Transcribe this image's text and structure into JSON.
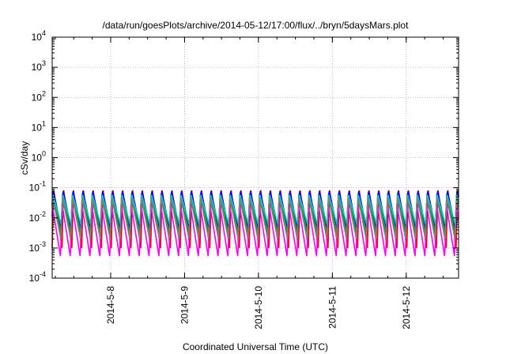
{
  "chart_data": {
    "type": "line",
    "title": "/data/run/goesPlots/archive/2014-05-12/17:00/flux/../bryn/5daysMars.plot",
    "xlabel": "Coordinated Universal Time (UTC)",
    "ylabel": "cSv/day",
    "yscale": "log",
    "ylim": [
      0.0001,
      10000
    ],
    "xlim": [
      "2014-05-07 05:00",
      "2014-05-12 17:00"
    ],
    "y_ticks": [
      {
        "base": "10",
        "exp": "-4"
      },
      {
        "base": "10",
        "exp": "-3"
      },
      {
        "base": "10",
        "exp": "-2"
      },
      {
        "base": "10",
        "exp": "-1"
      },
      {
        "base": "10",
        "exp": "0"
      },
      {
        "base": "10",
        "exp": "1"
      },
      {
        "base": "10",
        "exp": "2"
      },
      {
        "base": "10",
        "exp": "3"
      },
      {
        "base": "10",
        "exp": "4"
      }
    ],
    "x_ticks": [
      "2014-5-8",
      "2014-5-9",
      "2014-5-10",
      "2014-5-11",
      "2014-5-12"
    ],
    "grid": true,
    "pattern": {
      "description_free": true,
      "period_hours": 3.2,
      "peak_range": [
        0.02,
        0.095
      ],
      "trough_range": [
        0.0005,
        0.006
      ]
    },
    "series": [
      {
        "color": "#ff0000",
        "peak": 0.09,
        "trough": 0.001,
        "phase": 0.0
      },
      {
        "color": "#00aa00",
        "peak": 0.07,
        "trough": 0.003,
        "phase": 0.1
      },
      {
        "color": "#0000ff",
        "peak": 0.085,
        "trough": 0.004,
        "phase": 0.05
      },
      {
        "color": "#ff00ff",
        "peak": 0.03,
        "trough": 0.0005,
        "phase": 0.15
      },
      {
        "color": "#00cccc",
        "peak": 0.06,
        "trough": 0.006,
        "phase": 0.08
      },
      {
        "color": "#808080",
        "peak": 0.05,
        "trough": 0.002,
        "phase": 0.12
      }
    ]
  }
}
